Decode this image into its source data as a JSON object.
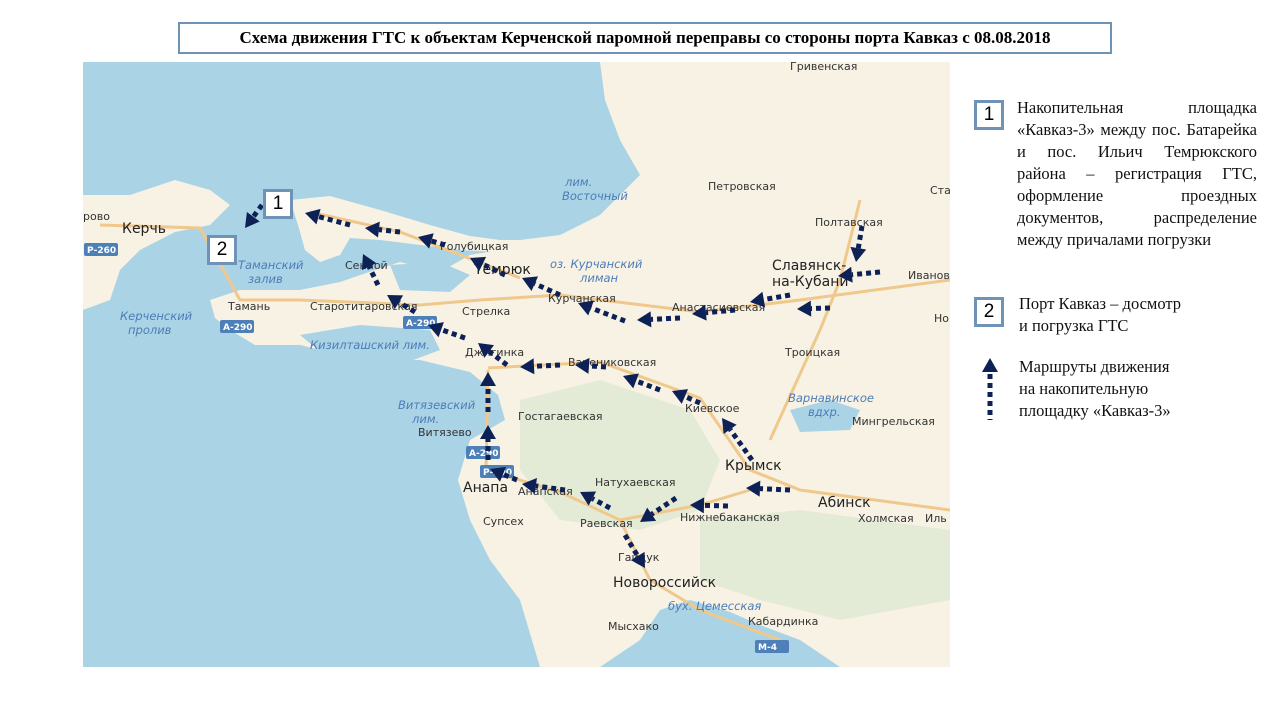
{
  "title": "Схема движения ГТС к объектам Керченской паромной переправы со стороны порта Кавказ с 08.08.2018",
  "colors": {
    "route": "#0d2157",
    "box_border": "#6f93b6",
    "water": "#aad3e5",
    "land": "#f7f2e4",
    "road": "#f0c88c"
  },
  "map": {
    "markers": [
      {
        "label": "1"
      },
      {
        "label": "2"
      }
    ],
    "places": [
      {
        "name": "Гривенская",
        "type": "settlement"
      },
      {
        "name": "Петровская",
        "type": "settlement"
      },
      {
        "name": "Ста",
        "type": "settlement"
      },
      {
        "name": "Полтавская",
        "type": "settlement"
      },
      {
        "name": "Славянск-",
        "type": "city"
      },
      {
        "name": "на-Кубани",
        "type": "city"
      },
      {
        "name": "Иваново",
        "type": "settlement"
      },
      {
        "name": "Но",
        "type": "settlement"
      },
      {
        "name": "Троицкая",
        "type": "settlement"
      },
      {
        "name": "Варнавинское",
        "type": "water"
      },
      {
        "name": "вдхр.",
        "type": "water"
      },
      {
        "name": "Мингрельская",
        "type": "settlement"
      },
      {
        "name": "Крымск",
        "type": "city"
      },
      {
        "name": "Абинск",
        "type": "city"
      },
      {
        "name": "Холмская",
        "type": "settlement"
      },
      {
        "name": "Иль",
        "type": "settlement"
      },
      {
        "name": "Нижнебаканская",
        "type": "settlement"
      },
      {
        "name": "Натухаевская",
        "type": "settlement"
      },
      {
        "name": "Раевская",
        "type": "settlement"
      },
      {
        "name": "Гайдук",
        "type": "settlement"
      },
      {
        "name": "Новороссийск",
        "type": "city"
      },
      {
        "name": "бух. Цемесская",
        "type": "water"
      },
      {
        "name": "Мысхако",
        "type": "settlement"
      },
      {
        "name": "Кабардинка",
        "type": "settlement"
      },
      {
        "name": "Киевское",
        "type": "settlement"
      },
      {
        "name": "Гостагаевская",
        "type": "settlement"
      },
      {
        "name": "Варениковская",
        "type": "settlement"
      },
      {
        "name": "Джигинка",
        "type": "settlement"
      },
      {
        "name": "Стрелка",
        "type": "settlement"
      },
      {
        "name": "Курчанская",
        "type": "settlement"
      },
      {
        "name": "Анастасиевская",
        "type": "settlement"
      },
      {
        "name": "Темрюк",
        "type": "city"
      },
      {
        "name": "Голубицкая",
        "type": "settlement"
      },
      {
        "name": "оз. Курчанский",
        "type": "water"
      },
      {
        "name": "лиман",
        "type": "water"
      },
      {
        "name": "лим.",
        "type": "water"
      },
      {
        "name": "Восточный",
        "type": "water"
      },
      {
        "name": "Сенной",
        "type": "settlement"
      },
      {
        "name": "Старотитаровская",
        "type": "settlement"
      },
      {
        "name": "Тамань",
        "type": "settlement"
      },
      {
        "name": "Керчь",
        "type": "city"
      },
      {
        "name": "рово",
        "type": "settlement"
      },
      {
        "name": "Таманский",
        "type": "water"
      },
      {
        "name": "залив",
        "type": "water"
      },
      {
        "name": "Керченский",
        "type": "water"
      },
      {
        "name": "пролив",
        "type": "water"
      },
      {
        "name": "Кизилташский лим.",
        "type": "water"
      },
      {
        "name": "Витязевский",
        "type": "water"
      },
      {
        "name": "лим.",
        "type": "water"
      },
      {
        "name": "Витязево",
        "type": "settlement"
      },
      {
        "name": "Анапа",
        "type": "city"
      },
      {
        "name": "Анапская",
        "type": "settlement"
      },
      {
        "name": "Супсех",
        "type": "settlement"
      }
    ],
    "road_badges": [
      "Р-260",
      "А-290",
      "А-290",
      "А-290",
      "Р-290",
      "М-4"
    ]
  },
  "legend": {
    "items": [
      {
        "number": "1",
        "text": "Накопительная площадка «Кавказ-3» между пос. Батарейка и  пос. Ильич Темрюкского района – регистрация ГТС, оформление проездных документов, распределение между причалами погрузки"
      },
      {
        "number": "2",
        "line1": "Порт Кавказ – досмотр",
        "line2": "и погрузка ГТС"
      },
      {
        "icon": "dotted-arrow-up-icon",
        "line1": "Маршруты движения",
        "line2": "на накопительную",
        "line3": "площадку «Кавказ-3»"
      }
    ]
  }
}
